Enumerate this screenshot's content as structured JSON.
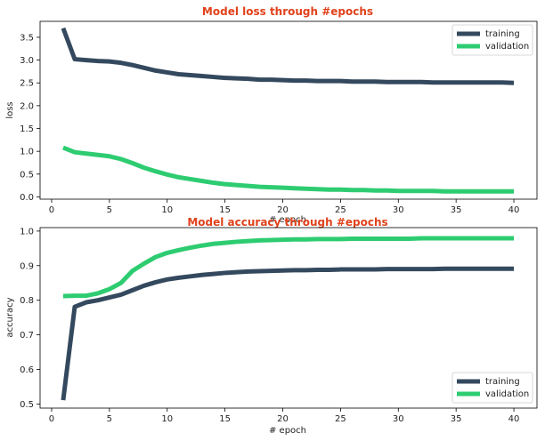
{
  "chart_data": [
    {
      "type": "line",
      "title": "Model loss through #epochs",
      "title_color": "#e0421b",
      "xlabel": "# epoch",
      "ylabel": "loss",
      "xlim": [
        -1,
        42
      ],
      "ylim": [
        -0.05,
        3.85
      ],
      "x_ticks": [
        0,
        5,
        10,
        15,
        20,
        25,
        30,
        35,
        40
      ],
      "y_ticks": [
        0.0,
        0.5,
        1.0,
        1.5,
        2.0,
        2.5,
        3.0,
        3.5
      ],
      "y_tick_labels": [
        "0.0",
        "0.5",
        "1.0",
        "1.5",
        "2.0",
        "2.5",
        "3.0",
        "3.5"
      ],
      "grid": false,
      "legend_position": "top-right",
      "x": [
        1,
        2,
        3,
        4,
        5,
        6,
        7,
        8,
        9,
        10,
        11,
        12,
        13,
        14,
        15,
        16,
        17,
        18,
        19,
        20,
        21,
        22,
        23,
        24,
        25,
        26,
        27,
        28,
        29,
        30,
        31,
        32,
        33,
        34,
        35,
        36,
        37,
        38,
        39,
        40
      ],
      "series": [
        {
          "name": "training",
          "color": "#34495e",
          "values": [
            3.7,
            3.02,
            3.0,
            2.98,
            2.97,
            2.94,
            2.89,
            2.83,
            2.77,
            2.73,
            2.69,
            2.67,
            2.65,
            2.63,
            2.61,
            2.6,
            2.59,
            2.57,
            2.57,
            2.56,
            2.55,
            2.55,
            2.54,
            2.54,
            2.54,
            2.53,
            2.53,
            2.53,
            2.52,
            2.52,
            2.52,
            2.52,
            2.51,
            2.51,
            2.51,
            2.51,
            2.51,
            2.51,
            2.51,
            2.5
          ]
        },
        {
          "name": "validation",
          "color": "#2ecc71",
          "values": [
            1.08,
            0.98,
            0.95,
            0.92,
            0.89,
            0.83,
            0.74,
            0.64,
            0.56,
            0.49,
            0.43,
            0.39,
            0.35,
            0.31,
            0.28,
            0.26,
            0.24,
            0.22,
            0.21,
            0.2,
            0.19,
            0.18,
            0.17,
            0.16,
            0.16,
            0.15,
            0.15,
            0.14,
            0.14,
            0.13,
            0.13,
            0.13,
            0.13,
            0.12,
            0.12,
            0.12,
            0.12,
            0.12,
            0.12,
            0.12
          ]
        }
      ]
    },
    {
      "type": "line",
      "title": "Model accuracy through #epochs",
      "title_color": "#e0421b",
      "xlabel": "# epoch",
      "ylabel": "accuracy",
      "xlim": [
        -1,
        42
      ],
      "ylim": [
        0.488,
        1.01
      ],
      "x_ticks": [
        0,
        5,
        10,
        15,
        20,
        25,
        30,
        35,
        40
      ],
      "y_ticks": [
        0.5,
        0.6,
        0.7,
        0.8,
        0.9,
        1.0
      ],
      "y_tick_labels": [
        "0.5",
        "0.6",
        "0.7",
        "0.8",
        "0.9",
        "1.0"
      ],
      "grid": false,
      "legend_position": "bottom-right",
      "x": [
        1,
        2,
        3,
        4,
        5,
        6,
        7,
        8,
        9,
        10,
        11,
        12,
        13,
        14,
        15,
        16,
        17,
        18,
        19,
        20,
        21,
        22,
        23,
        24,
        25,
        26,
        27,
        28,
        29,
        30,
        31,
        32,
        33,
        34,
        35,
        36,
        37,
        38,
        39,
        40
      ],
      "series": [
        {
          "name": "training",
          "color": "#34495e",
          "values": [
            0.511,
            0.781,
            0.794,
            0.8,
            0.808,
            0.816,
            0.829,
            0.842,
            0.852,
            0.86,
            0.865,
            0.869,
            0.873,
            0.876,
            0.879,
            0.881,
            0.883,
            0.884,
            0.885,
            0.886,
            0.887,
            0.887,
            0.888,
            0.888,
            0.889,
            0.889,
            0.889,
            0.889,
            0.89,
            0.89,
            0.89,
            0.89,
            0.89,
            0.891,
            0.891,
            0.891,
            0.891,
            0.891,
            0.891,
            0.891
          ]
        },
        {
          "name": "validation",
          "color": "#2ecc71",
          "values": [
            0.812,
            0.813,
            0.813,
            0.82,
            0.832,
            0.85,
            0.885,
            0.906,
            0.925,
            0.937,
            0.945,
            0.952,
            0.958,
            0.963,
            0.966,
            0.969,
            0.971,
            0.973,
            0.974,
            0.975,
            0.976,
            0.976,
            0.977,
            0.977,
            0.977,
            0.978,
            0.978,
            0.978,
            0.978,
            0.978,
            0.978,
            0.979,
            0.979,
            0.979,
            0.979,
            0.979,
            0.979,
            0.979,
            0.979,
            0.979
          ]
        }
      ]
    }
  ]
}
